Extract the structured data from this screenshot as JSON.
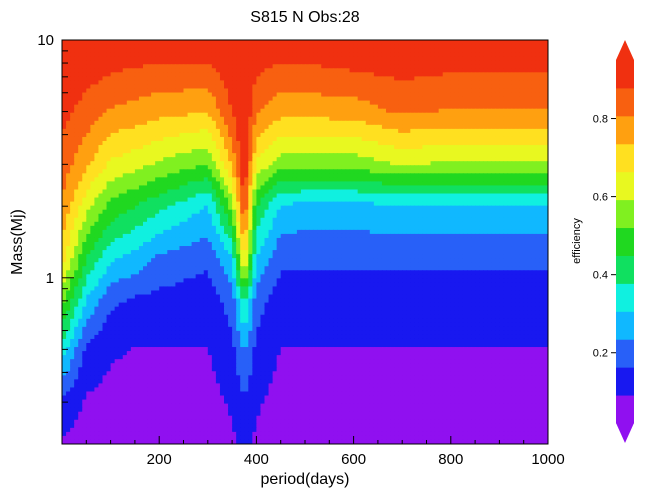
{
  "chart_data": {
    "type": "heatmap",
    "title": "S815 N Obs:28",
    "xlabel": "period(days)",
    "ylabel": "Mass(Mj)",
    "colorbar_label": "efficiency",
    "x_range": [
      0,
      1000
    ],
    "y_range": [
      0.2,
      10
    ],
    "y_scale": "log",
    "x_tick_labels": [
      "200",
      "400",
      "600",
      "800",
      "1000"
    ],
    "x_tick_values": [
      200,
      400,
      600,
      800,
      1000
    ],
    "y_tick_labels": [
      "1",
      "10"
    ],
    "y_tick_values": [
      1,
      10
    ],
    "colorbar_range": [
      0.02,
      0.95
    ],
    "colorbar_tick_labels": [
      "0.2",
      "0.4",
      "0.6",
      "0.8"
    ],
    "colorbar_tick_values": [
      0.2,
      0.4,
      0.6,
      0.8
    ],
    "colorbar_extend": "both",
    "colormap": [
      "#9010f0",
      "#1818f0",
      "#2860f8",
      "#10b8ff",
      "#10f0e0",
      "#10e060",
      "#20d820",
      "#80f020",
      "#e8f820",
      "#ffe020",
      "#ffa010",
      "#f86010",
      "#f03010"
    ],
    "efficiency_grid": {
      "mass": [
        0.2,
        0.3,
        0.5,
        0.8,
        1.2,
        2.0,
        3.0,
        5.0,
        8.0,
        10.0
      ],
      "period": [
        0,
        50,
        100,
        150,
        200,
        250,
        300,
        350,
        375,
        400,
        450,
        500,
        600,
        700,
        800,
        900,
        1000
      ],
      "values": [
        [
          0.08,
          0.06,
          0.06,
          0.06,
          0.06,
          0.06,
          0.06,
          0.08,
          0.1,
          0.08,
          0.06,
          0.06,
          0.06,
          0.06,
          0.06,
          0.06,
          0.06
        ],
        [
          0.15,
          0.08,
          0.07,
          0.07,
          0.07,
          0.07,
          0.07,
          0.1,
          0.15,
          0.1,
          0.07,
          0.07,
          0.07,
          0.07,
          0.07,
          0.07,
          0.07
        ],
        [
          0.35,
          0.15,
          0.1,
          0.09,
          0.09,
          0.09,
          0.09,
          0.14,
          0.25,
          0.14,
          0.09,
          0.09,
          0.09,
          0.09,
          0.09,
          0.09,
          0.09
        ],
        [
          0.55,
          0.3,
          0.18,
          0.15,
          0.14,
          0.13,
          0.12,
          0.2,
          0.4,
          0.2,
          0.12,
          0.12,
          0.12,
          0.12,
          0.12,
          0.12,
          0.12
        ],
        [
          0.7,
          0.45,
          0.32,
          0.28,
          0.22,
          0.2,
          0.18,
          0.3,
          0.7,
          0.3,
          0.18,
          0.18,
          0.18,
          0.18,
          0.18,
          0.18,
          0.18
        ],
        [
          0.8,
          0.62,
          0.5,
          0.45,
          0.4,
          0.35,
          0.3,
          0.55,
          0.9,
          0.45,
          0.3,
          0.28,
          0.28,
          0.3,
          0.3,
          0.3,
          0.3
        ],
        [
          0.85,
          0.75,
          0.65,
          0.62,
          0.58,
          0.55,
          0.52,
          0.75,
          0.95,
          0.65,
          0.55,
          0.55,
          0.55,
          0.6,
          0.58,
          0.58,
          0.58
        ],
        [
          0.9,
          0.85,
          0.8,
          0.78,
          0.76,
          0.75,
          0.74,
          0.88,
          0.95,
          0.82,
          0.76,
          0.76,
          0.77,
          0.82,
          0.8,
          0.8,
          0.8
        ],
        [
          0.93,
          0.92,
          0.9,
          0.89,
          0.88,
          0.88,
          0.88,
          0.93,
          0.95,
          0.9,
          0.88,
          0.88,
          0.9,
          0.91,
          0.9,
          0.9,
          0.9
        ],
        [
          0.95,
          0.94,
          0.93,
          0.92,
          0.92,
          0.92,
          0.92,
          0.94,
          0.95,
          0.93,
          0.92,
          0.92,
          0.93,
          0.93,
          0.93,
          0.93,
          0.93
        ]
      ]
    }
  }
}
